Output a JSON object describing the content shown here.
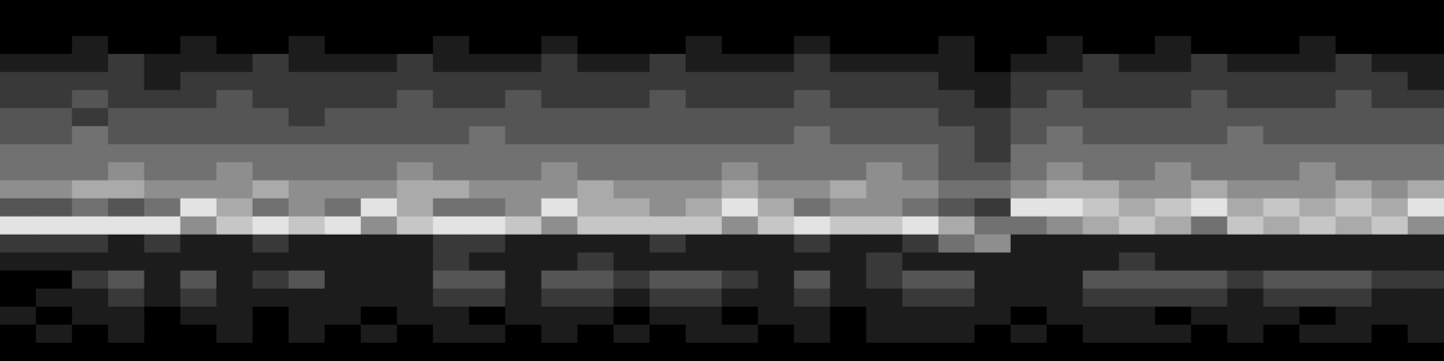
{
  "chart_data": {
    "type": "heatmap",
    "tick_labels": false,
    "grid": false,
    "zlim": [
      0,
      9
    ],
    "cells": [
      [
        0,
        0,
        0,
        0,
        0,
        0,
        0,
        0,
        0,
        0,
        0,
        0,
        0,
        0,
        0,
        0,
        0,
        0,
        0,
        0,
        0,
        0,
        0,
        0,
        0,
        0,
        0,
        0,
        0,
        0,
        0,
        0,
        0,
        0,
        0,
        0,
        0,
        0,
        0,
        0
      ],
      [
        0,
        0,
        0,
        0,
        0,
        0,
        0,
        0,
        0,
        0,
        0,
        0,
        0,
        0,
        0,
        0,
        0,
        0,
        0,
        0,
        0,
        0,
        0,
        0,
        0,
        0,
        0,
        0,
        0,
        0,
        0,
        0,
        0,
        0,
        0,
        0,
        0,
        0,
        0,
        0
      ],
      [
        0,
        0,
        1,
        0,
        0,
        1,
        0,
        0,
        1,
        0,
        0,
        0,
        1,
        0,
        0,
        1,
        0,
        0,
        0,
        1,
        0,
        0,
        1,
        0,
        0,
        0,
        1,
        0,
        0,
        1,
        0,
        0,
        1,
        0,
        0,
        0,
        1,
        0,
        0,
        0
      ],
      [
        1,
        1,
        1,
        2,
        1,
        1,
        1,
        2,
        1,
        1,
        1,
        2,
        1,
        1,
        1,
        2,
        1,
        1,
        2,
        1,
        1,
        1,
        2,
        1,
        1,
        1,
        1,
        0,
        1,
        1,
        2,
        1,
        1,
        2,
        1,
        1,
        1,
        2,
        1,
        1
      ],
      [
        2,
        2,
        2,
        2,
        1,
        2,
        2,
        2,
        2,
        2,
        2,
        2,
        2,
        2,
        2,
        2,
        2,
        2,
        2,
        2,
        2,
        2,
        2,
        2,
        2,
        2,
        1,
        1,
        2,
        2,
        2,
        2,
        2,
        2,
        2,
        2,
        2,
        2,
        2,
        1
      ],
      [
        2,
        2,
        3,
        2,
        2,
        2,
        3,
        2,
        2,
        2,
        2,
        3,
        2,
        2,
        3,
        2,
        2,
        2,
        3,
        2,
        2,
        2,
        3,
        2,
        2,
        2,
        2,
        1,
        2,
        3,
        2,
        2,
        2,
        3,
        2,
        2,
        2,
        3,
        2,
        2
      ],
      [
        3,
        3,
        2,
        3,
        3,
        3,
        3,
        3,
        2,
        3,
        3,
        3,
        3,
        3,
        3,
        3,
        3,
        3,
        3,
        3,
        3,
        3,
        3,
        3,
        3,
        3,
        2,
        2,
        3,
        3,
        3,
        3,
        3,
        3,
        3,
        3,
        3,
        3,
        3,
        3
      ],
      [
        3,
        3,
        4,
        3,
        3,
        3,
        3,
        3,
        3,
        3,
        3,
        3,
        3,
        4,
        3,
        3,
        3,
        3,
        3,
        3,
        3,
        3,
        4,
        3,
        3,
        3,
        3,
        2,
        3,
        4,
        3,
        3,
        3,
        3,
        4,
        3,
        3,
        3,
        3,
        3
      ],
      [
        4,
        4,
        4,
        4,
        4,
        4,
        4,
        4,
        4,
        4,
        4,
        4,
        4,
        4,
        4,
        4,
        4,
        4,
        4,
        4,
        4,
        4,
        4,
        4,
        4,
        4,
        3,
        2,
        4,
        4,
        4,
        4,
        4,
        4,
        4,
        4,
        4,
        4,
        4,
        4
      ],
      [
        4,
        4,
        4,
        5,
        4,
        4,
        5,
        4,
        4,
        4,
        4,
        5,
        4,
        4,
        4,
        5,
        4,
        4,
        4,
        4,
        5,
        4,
        4,
        4,
        5,
        4,
        3,
        3,
        4,
        5,
        4,
        4,
        5,
        4,
        4,
        4,
        5,
        4,
        4,
        4
      ],
      [
        5,
        5,
        6,
        6,
        5,
        5,
        5,
        6,
        5,
        5,
        5,
        6,
        6,
        5,
        5,
        5,
        6,
        5,
        5,
        5,
        6,
        5,
        5,
        6,
        5,
        5,
        4,
        4,
        5,
        6,
        6,
        5,
        5,
        6,
        5,
        5,
        5,
        6,
        5,
        6
      ],
      [
        3,
        3,
        4,
        3,
        4,
        8,
        6,
        4,
        5,
        4,
        8,
        6,
        4,
        4,
        5,
        8,
        6,
        6,
        5,
        6,
        8,
        6,
        4,
        5,
        5,
        4,
        3,
        2,
        8,
        8,
        7,
        6,
        7,
        8,
        6,
        7,
        6,
        7,
        6,
        8
      ],
      [
        8,
        8,
        8,
        8,
        8,
        5,
        7,
        8,
        7,
        8,
        5,
        7,
        8,
        8,
        7,
        5,
        7,
        7,
        7,
        7,
        5,
        7,
        8,
        7,
        7,
        8,
        6,
        4,
        4,
        5,
        6,
        7,
        6,
        4,
        7,
        6,
        7,
        6,
        7,
        5
      ],
      [
        2,
        2,
        2,
        1,
        2,
        1,
        1,
        2,
        1,
        1,
        1,
        1,
        2,
        2,
        1,
        1,
        1,
        1,
        2,
        1,
        1,
        1,
        2,
        1,
        1,
        2,
        4,
        5,
        1,
        1,
        1,
        1,
        1,
        1,
        1,
        1,
        1,
        1,
        1,
        1
      ],
      [
        1,
        1,
        1,
        1,
        1,
        1,
        1,
        1,
        1,
        1,
        1,
        1,
        2,
        1,
        1,
        1,
        2,
        1,
        1,
        1,
        1,
        1,
        1,
        1,
        2,
        1,
        1,
        1,
        1,
        1,
        1,
        2,
        1,
        1,
        1,
        1,
        1,
        1,
        1,
        1
      ],
      [
        0,
        0,
        2,
        3,
        1,
        3,
        1,
        2,
        3,
        1,
        1,
        1,
        3,
        3,
        1,
        3,
        3,
        2,
        3,
        3,
        2,
        1,
        3,
        1,
        2,
        3,
        3,
        1,
        1,
        1,
        3,
        3,
        3,
        3,
        2,
        3,
        3,
        3,
        2,
        2
      ],
      [
        0,
        1,
        1,
        2,
        1,
        2,
        1,
        1,
        1,
        1,
        1,
        1,
        2,
        2,
        1,
        2,
        2,
        1,
        2,
        2,
        1,
        1,
        2,
        1,
        1,
        2,
        2,
        1,
        1,
        1,
        2,
        2,
        2,
        2,
        1,
        2,
        2,
        2,
        1,
        1
      ],
      [
        1,
        0,
        1,
        1,
        0,
        1,
        1,
        0,
        1,
        1,
        0,
        1,
        1,
        0,
        1,
        1,
        1,
        0,
        1,
        1,
        0,
        1,
        1,
        0,
        1,
        1,
        1,
        1,
        0,
        1,
        1,
        1,
        0,
        1,
        1,
        1,
        0,
        1,
        1,
        1
      ],
      [
        0,
        1,
        0,
        1,
        0,
        0,
        1,
        0,
        1,
        0,
        1,
        0,
        1,
        1,
        0,
        1,
        0,
        1,
        0,
        1,
        1,
        0,
        1,
        0,
        1,
        1,
        1,
        0,
        1,
        0,
        1,
        1,
        1,
        0,
        1,
        0,
        1,
        1,
        0,
        1
      ],
      [
        0,
        0,
        0,
        0,
        0,
        0,
        0,
        0,
        0,
        0,
        0,
        0,
        0,
        0,
        0,
        0,
        0,
        0,
        0,
        0,
        0,
        0,
        0,
        0,
        0,
        0,
        0,
        0,
        0,
        0,
        0,
        0,
        0,
        0,
        0,
        0,
        0,
        0,
        0,
        0
      ]
    ]
  }
}
